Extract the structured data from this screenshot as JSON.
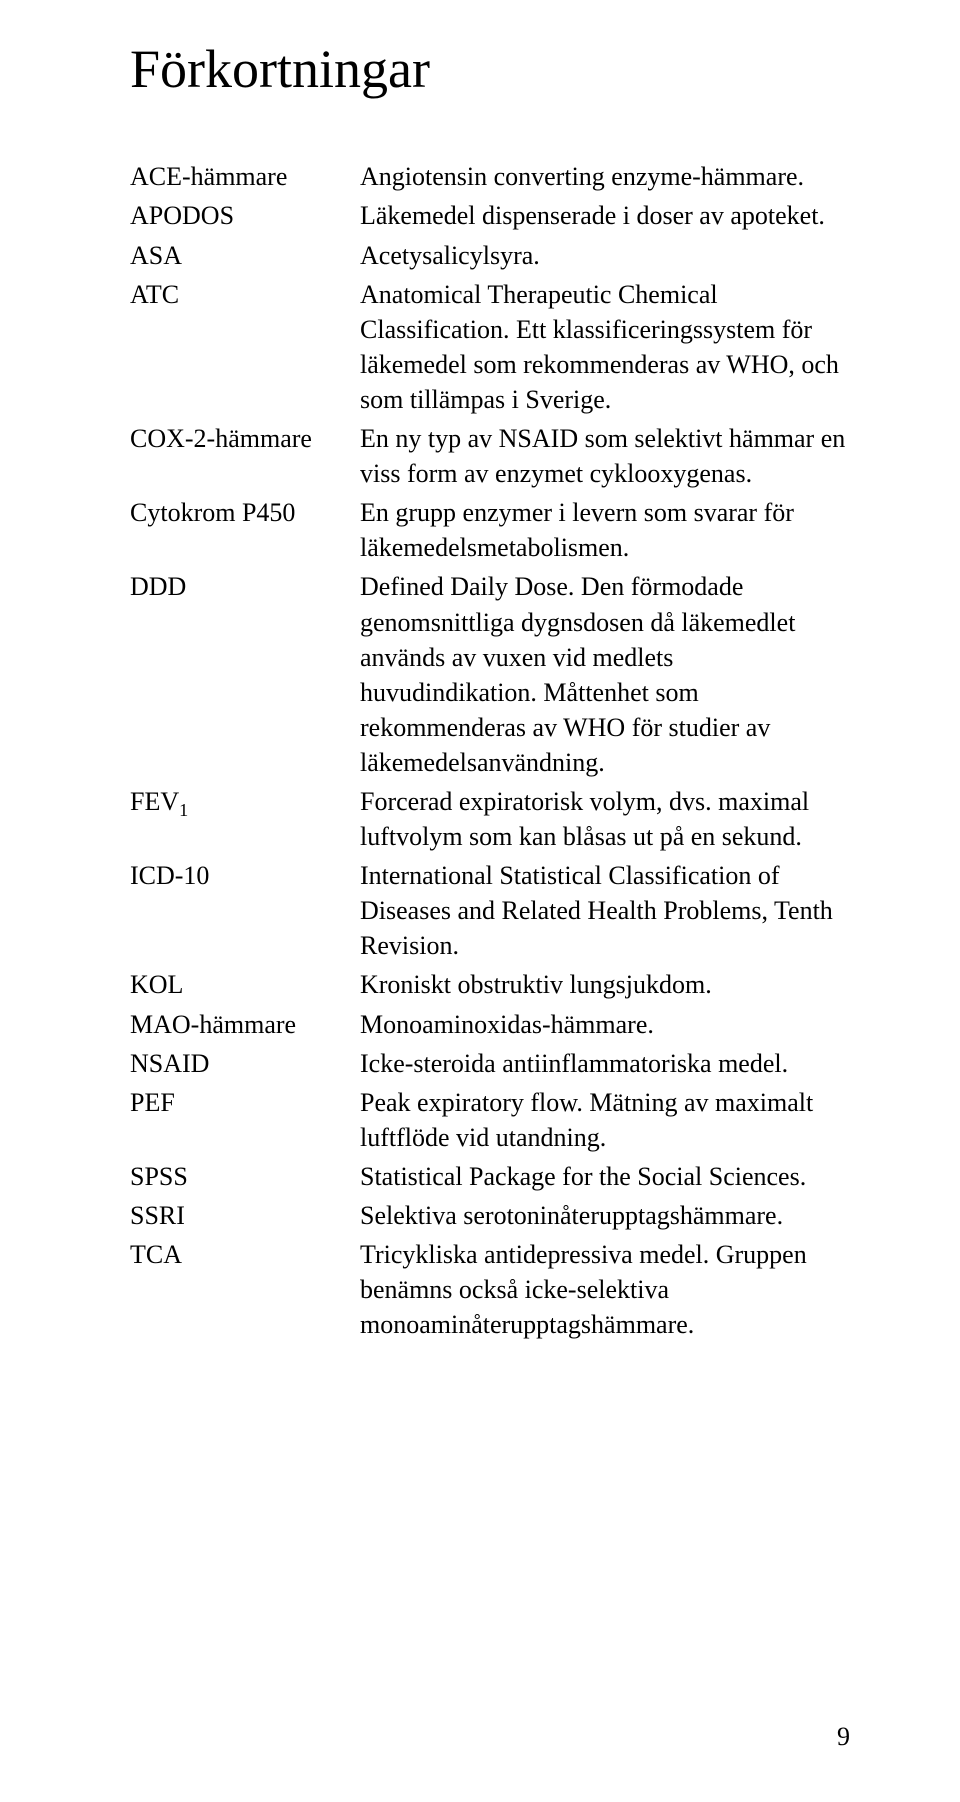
{
  "heading": "Förkortningar",
  "page_number": "9",
  "entries": [
    {
      "term": "ACE-hämmare",
      "definition": "Angiotensin converting enzyme-hämmare."
    },
    {
      "term": "APODOS",
      "definition": "Läkemedel dispenserade i doser av apoteket."
    },
    {
      "term": "ASA",
      "definition": "Acetysalicylsyra."
    },
    {
      "term": "ATC",
      "definition": "Anatomical Therapeutic Chemical Classification. Ett klassificeringssystem för läkemedel som rekommenderas av WHO, och som tillämpas i Sverige."
    },
    {
      "term": "COX-2-hämmare",
      "definition": "En ny typ av NSAID som selektivt hämmar en viss form av enzymet cyklooxygenas."
    },
    {
      "term": "Cytokrom P450",
      "definition": "En grupp enzymer i levern som svarar för läkemedelsmetabolismen."
    },
    {
      "term": "DDD",
      "definition": "Defined Daily Dose. Den förmodade genomsnittliga dygnsdosen då läkemedlet används av vuxen vid medlets huvudindikation. Måttenhet som rekommenderas av WHO för studier av läkemedelsanvändning."
    },
    {
      "term": "FEV",
      "term_sub": "1",
      "definition": "Forcerad expiratorisk volym, dvs. maximal luftvolym som kan blåsas ut på en sekund."
    },
    {
      "term": "ICD-10",
      "definition": "International Statistical Classification of Diseases and Related Health Problems, Tenth Revision."
    },
    {
      "term": "KOL",
      "definition": "Kroniskt obstruktiv lungsjukdom."
    },
    {
      "term": "MAO-hämmare",
      "definition": "Monoaminoxidas-hämmare."
    },
    {
      "term": "NSAID",
      "definition": "Icke-steroida antiinflammatoriska medel."
    },
    {
      "term": "PEF",
      "definition": "Peak expiratory flow. Mätning av maximalt luftflöde vid utandning."
    },
    {
      "term": "SPSS",
      "definition": "Statistical Package for the Social Sciences."
    },
    {
      "term": "SSRI",
      "definition": "Selektiva serotoninåterupptagshämmare."
    },
    {
      "term": "TCA",
      "definition": "Tricykliska antidepressiva medel. Gruppen benämns också icke-selektiva monoaminåterupptagshämmare."
    }
  ]
}
